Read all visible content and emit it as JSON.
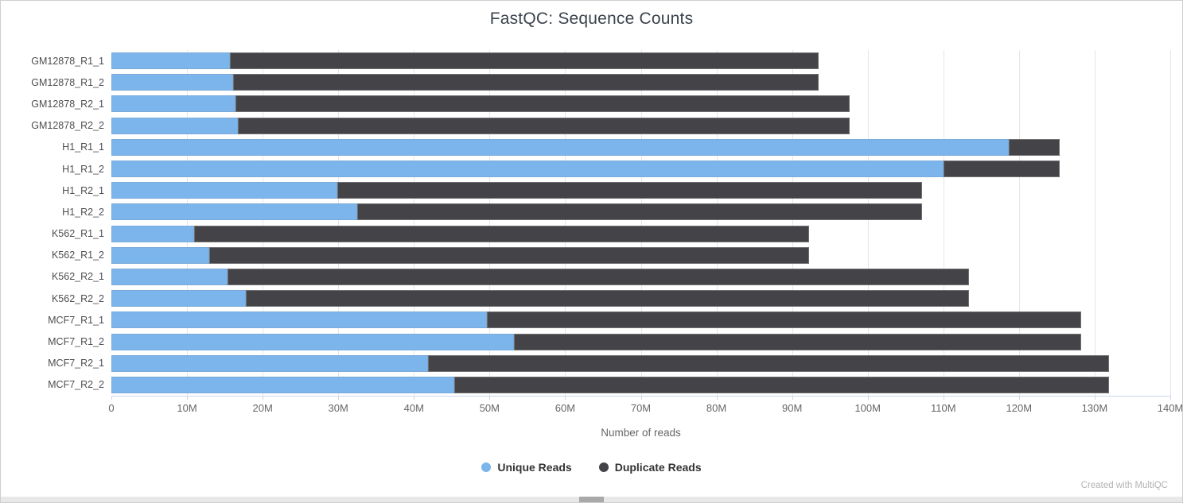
{
  "page": {
    "footer_credit": "Created with MultiQC"
  },
  "chart_data": {
    "type": "bar",
    "orientation": "horizontal",
    "stacked": true,
    "title": "FastQC: Sequence Counts",
    "xlabel": "Number of reads",
    "xlim": [
      0,
      140
    ],
    "x_unit": "millions of reads (M)",
    "x_ticks": [
      {
        "value": 0,
        "label": "0"
      },
      {
        "value": 10,
        "label": "10M"
      },
      {
        "value": 20,
        "label": "20M"
      },
      {
        "value": 30,
        "label": "30M"
      },
      {
        "value": 40,
        "label": "40M"
      },
      {
        "value": 50,
        "label": "50M"
      },
      {
        "value": 60,
        "label": "60M"
      },
      {
        "value": 70,
        "label": "70M"
      },
      {
        "value": 80,
        "label": "80M"
      },
      {
        "value": 90,
        "label": "90M"
      },
      {
        "value": 100,
        "label": "100M"
      },
      {
        "value": 110,
        "label": "110M"
      },
      {
        "value": 120,
        "label": "120M"
      },
      {
        "value": 130,
        "label": "130M"
      },
      {
        "value": 140,
        "label": "140M"
      }
    ],
    "grid": "vertical-only",
    "legend_position": "bottom",
    "categories": [
      "GM12878_R1_1",
      "GM12878_R1_2",
      "GM12878_R2_1",
      "GM12878_R2_2",
      "H1_R1_1",
      "H1_R1_2",
      "H1_R2_1",
      "H1_R2_2",
      "K562_R1_1",
      "K562_R1_2",
      "K562_R2_1",
      "K562_R2_2",
      "MCF7_R1_1",
      "MCF7_R1_2",
      "MCF7_R2_1",
      "MCF7_R2_2"
    ],
    "series": [
      {
        "name": "Unique Reads",
        "color": "#7cb5ec",
        "values": [
          15.7,
          16.1,
          16.4,
          16.7,
          118.6,
          110.0,
          29.9,
          32.5,
          10.9,
          12.9,
          15.4,
          17.8,
          49.6,
          53.2,
          41.9,
          45.3
        ]
      },
      {
        "name": "Duplicate Reads",
        "color": "#434348",
        "values": [
          77.8,
          77.4,
          81.2,
          80.9,
          6.8,
          15.4,
          77.3,
          74.7,
          81.3,
          79.3,
          98.0,
          95.6,
          78.6,
          75.0,
          90.0,
          86.6
        ]
      }
    ]
  }
}
